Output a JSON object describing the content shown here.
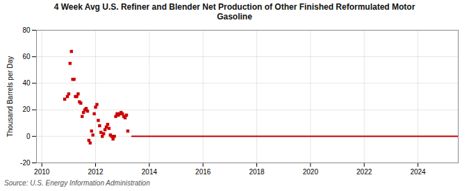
{
  "chart_data": {
    "type": "scatter",
    "title": "4 Week Avg U.S. Refiner and Blender Net Production of Other Finished Reformulated Motor\nGasoline",
    "ylabel": "Thousand Barrels per Day",
    "source": "Source: U.S. Energy Information Administration",
    "xlim": [
      2009.8,
      2025.5
    ],
    "ylim": [
      -20,
      80
    ],
    "xticks": [
      2010,
      2012,
      2014,
      2016,
      2018,
      2020,
      2022,
      2024
    ],
    "yticks": [
      -20,
      0,
      20,
      40,
      60,
      80
    ],
    "grid": true,
    "series": [
      {
        "type": "scatter",
        "color": "#cc0000",
        "marker": "square",
        "x": [
          2010.85,
          2010.95,
          2011.0,
          2011.05,
          2011.1,
          2011.15,
          2011.2,
          2011.25,
          2011.3,
          2011.35,
          2011.4,
          2011.45,
          2011.5,
          2011.55,
          2011.6,
          2011.65,
          2011.7,
          2011.75,
          2011.8,
          2011.85,
          2011.9,
          2011.95,
          2012.0,
          2012.05,
          2012.1,
          2012.15,
          2012.2,
          2012.25,
          2012.3,
          2012.35,
          2012.4,
          2012.45,
          2012.5,
          2012.55,
          2012.6,
          2012.65,
          2012.7,
          2012.75,
          2012.8,
          2012.85,
          2012.9,
          2012.95,
          2013.0,
          2013.05,
          2013.1,
          2013.15,
          2013.2
        ],
        "values": [
          28,
          30,
          32,
          55,
          64,
          43,
          43,
          30,
          30,
          32,
          26,
          25,
          15,
          18,
          20,
          21,
          19,
          -3,
          -5,
          4,
          1,
          17,
          22,
          24,
          12,
          8,
          3,
          0,
          2,
          5,
          7,
          9,
          6,
          1,
          0,
          -2,
          0,
          15,
          17,
          16,
          17,
          18,
          17,
          15,
          14,
          16,
          4
        ]
      },
      {
        "type": "line",
        "color": "#cc0000",
        "line_style": "solid",
        "x": [
          2013.35,
          2025.5
        ],
        "values": [
          0,
          0
        ]
      }
    ]
  }
}
